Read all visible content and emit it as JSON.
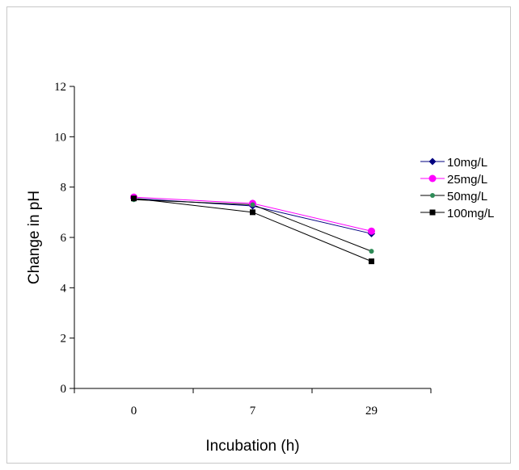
{
  "chart_data": {
    "type": "line",
    "title": "",
    "xlabel": "Incubation (h)",
    "ylabel": "Change in pH",
    "categories": [
      "0",
      "7",
      "29"
    ],
    "ylim": [
      0,
      12
    ],
    "yticks": [
      "0",
      "2",
      "4",
      "6",
      "8",
      "10",
      "12"
    ],
    "grid": false,
    "legend": "right",
    "series": [
      {
        "name": "10mg/L",
        "values": [
          7.55,
          7.25,
          6.15
        ],
        "color": "#000080",
        "line_color": "#000080",
        "marker": "diamond"
      },
      {
        "name": "25mg/L",
        "values": [
          7.6,
          7.35,
          6.25
        ],
        "color": "#ff00ff",
        "line_color": "#ff00ff",
        "marker": "circle"
      },
      {
        "name": "50mg/L",
        "values": [
          7.5,
          7.3,
          5.45
        ],
        "color": "#2e8b57",
        "line_color": "#000000",
        "marker": "small-circle"
      },
      {
        "name": "100mg/L",
        "values": [
          7.55,
          7.0,
          5.05
        ],
        "color": "#000000",
        "line_color": "#000000",
        "marker": "square"
      }
    ]
  }
}
